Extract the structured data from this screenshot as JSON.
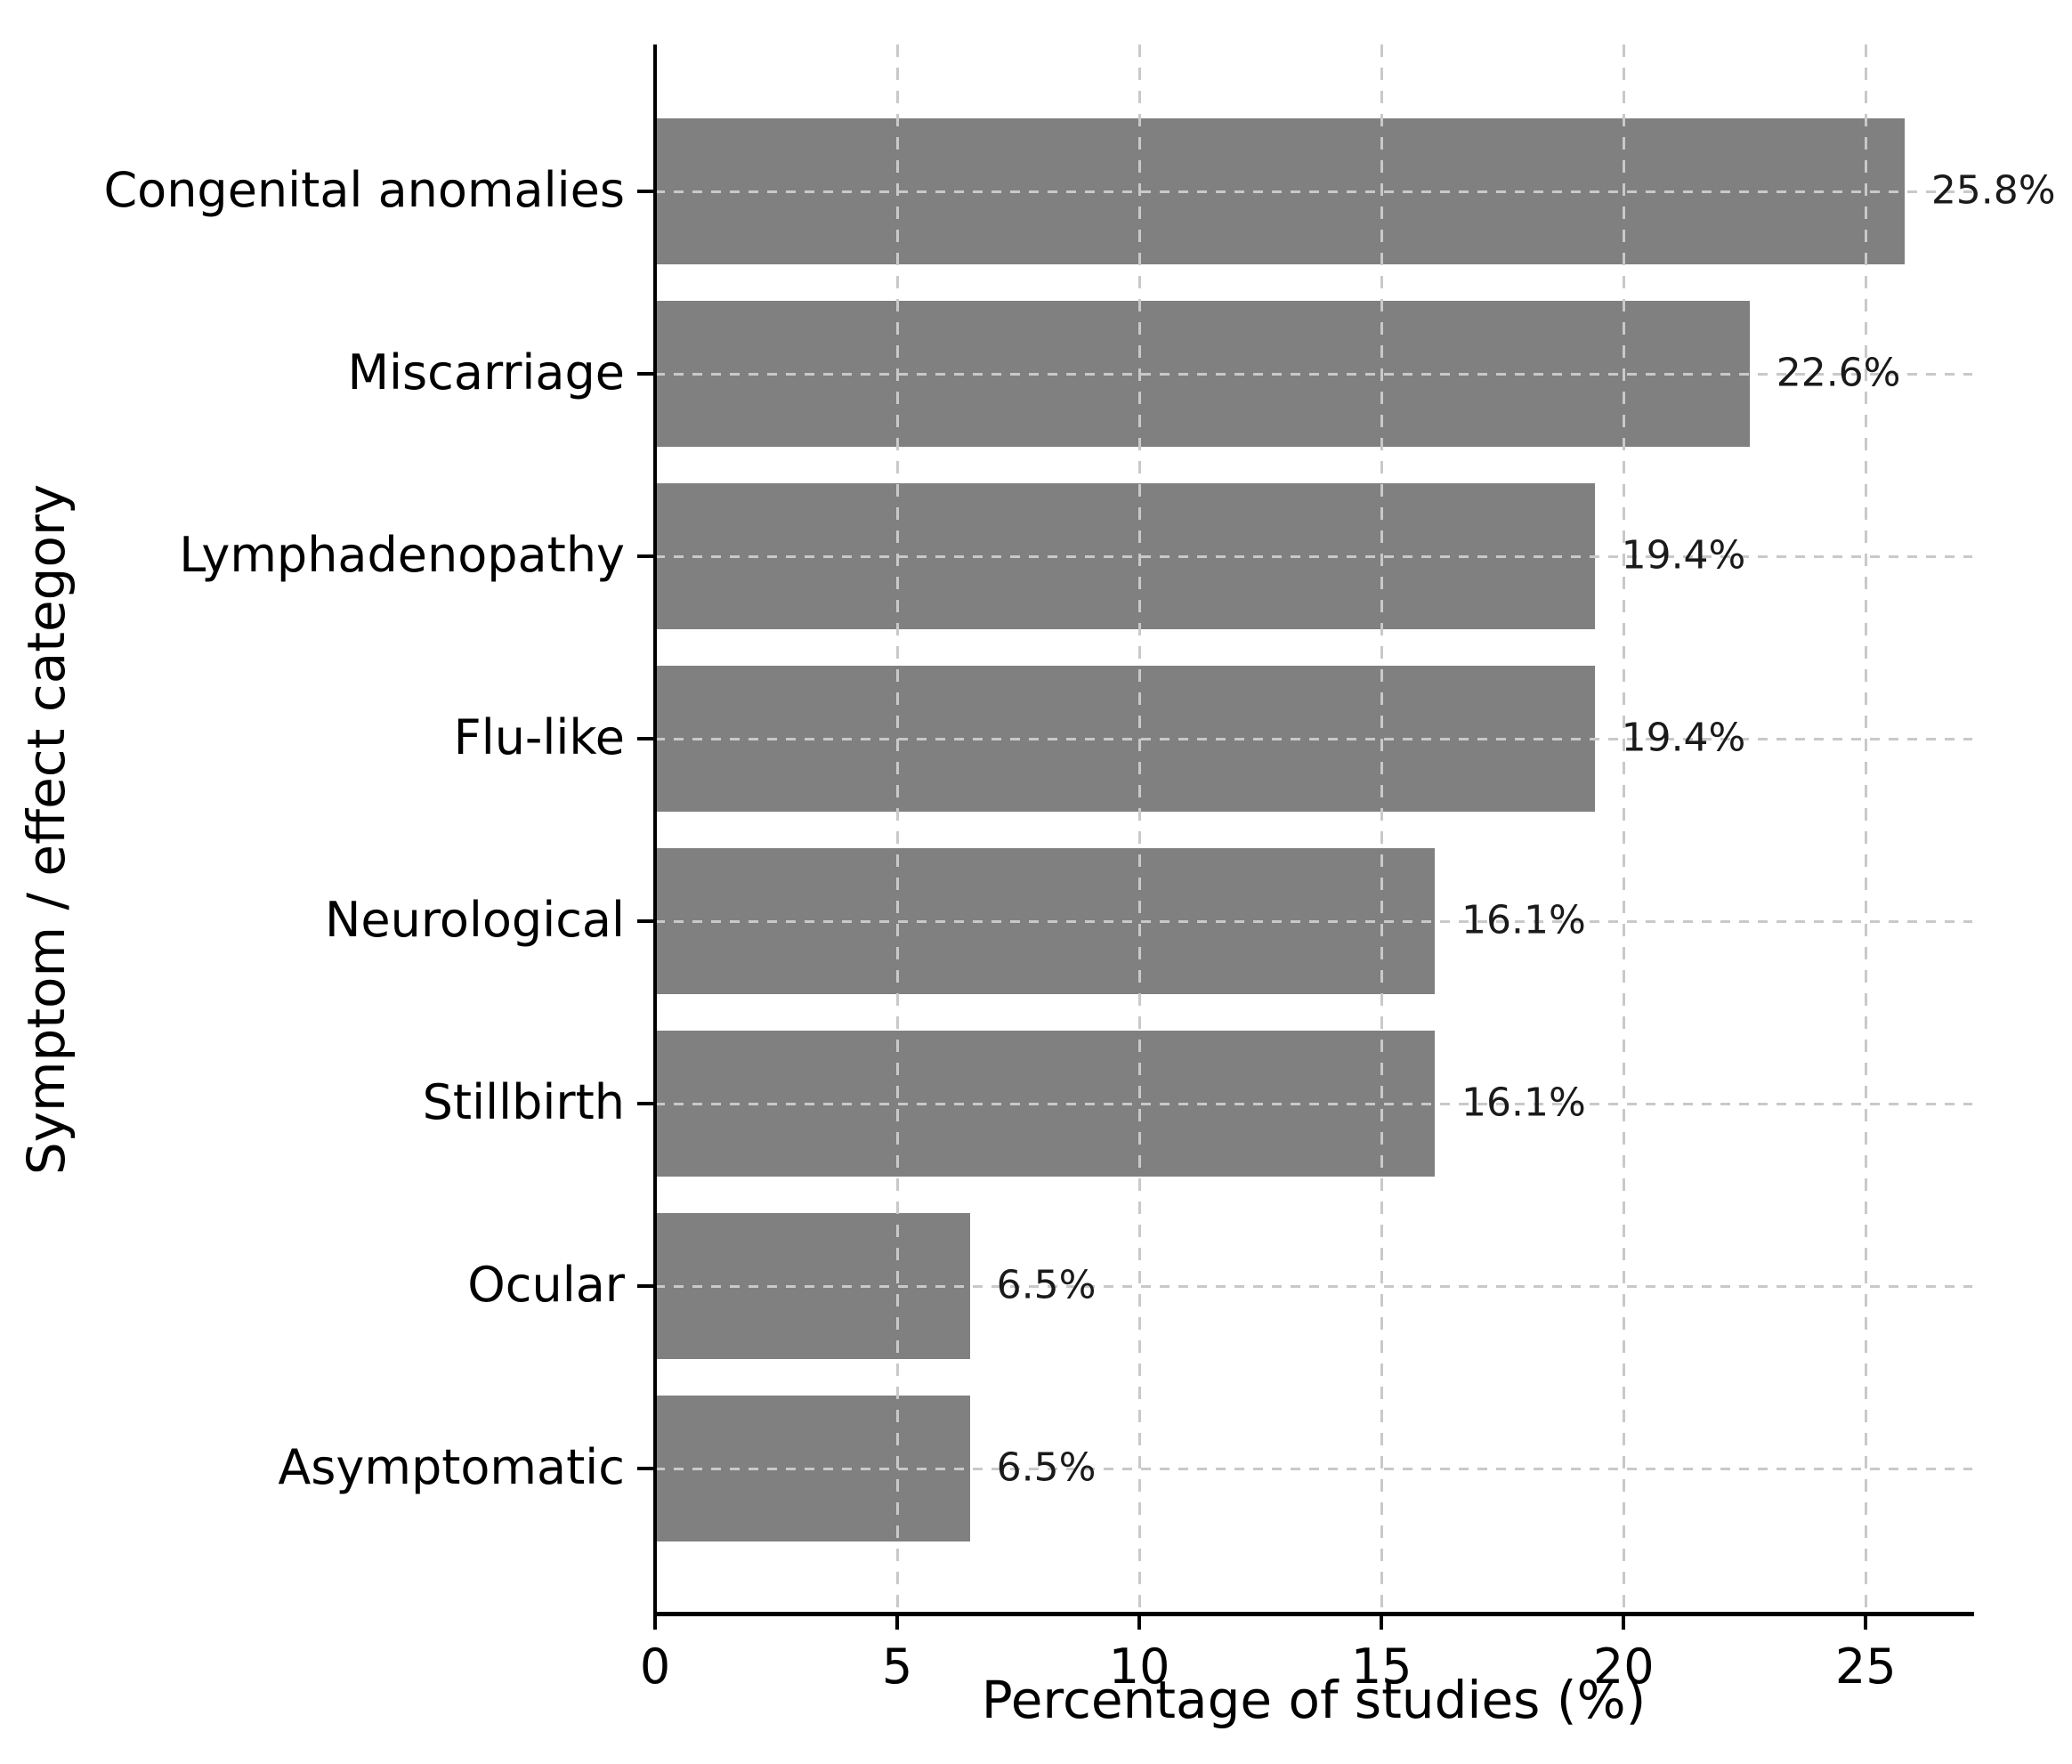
{
  "chart_data": {
    "type": "bar",
    "orientation": "horizontal",
    "title": "",
    "xlabel": "Percentage of studies (%)",
    "ylabel": "Symptom / effect category",
    "categories": [
      "Congenital anomalies",
      "Miscarriage",
      "Lymphadenopathy",
      "Flu-like",
      "Neurological",
      "Stillbirth",
      "Ocular",
      "Asymptomatic"
    ],
    "values": [
      25.8,
      22.6,
      19.4,
      19.4,
      16.1,
      16.1,
      6.5,
      6.5
    ],
    "value_labels": [
      "25.8%",
      "22.6%",
      "19.4%",
      "19.4%",
      "16.1%",
      "16.1%",
      "6.5%",
      "6.5%"
    ],
    "xticks": [
      0,
      5,
      10,
      15,
      20,
      25
    ],
    "xlim": [
      0,
      27.2
    ],
    "grid": "dashed gridlines on both axes, drawn over bars",
    "legend": "none",
    "bar_color": "#808080",
    "grid_color": "#c9c9c9",
    "axis_color": "#000000",
    "text_color": "#1a1a1a"
  }
}
